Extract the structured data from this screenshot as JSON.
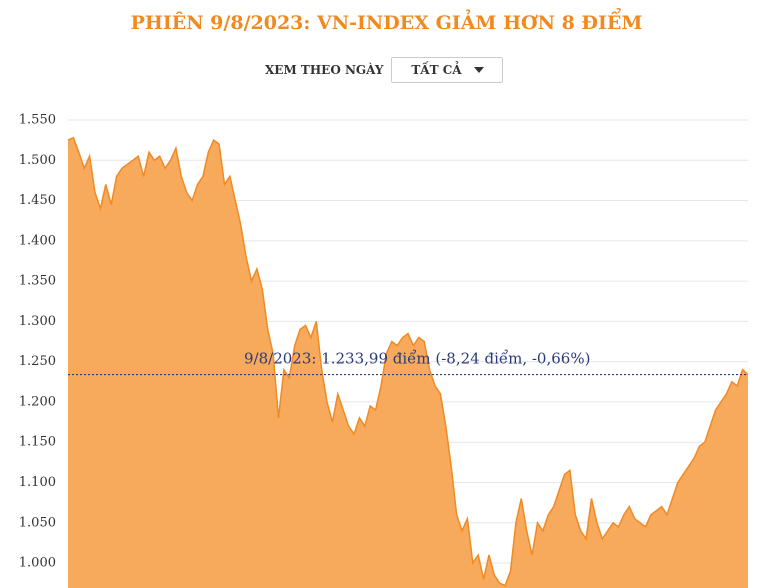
{
  "title": "PHIÊN 9/8/2023: VN-INDEX GIẢM HƠN 8 ĐIỂM",
  "controls": {
    "label": "XEM THEO NGÀY",
    "dropdown": "TẤT CẢ"
  },
  "chart_data": {
    "type": "area",
    "color": "#f7a95c",
    "line_color": "#f08a24",
    "grid": true,
    "ylim": [
      969,
      1550
    ],
    "yticks": [
      {
        "value": 1000,
        "label": "1.000"
      },
      {
        "value": 1050,
        "label": "1.050"
      },
      {
        "value": 1100,
        "label": "1.100"
      },
      {
        "value": 1150,
        "label": "1.150"
      },
      {
        "value": 1200,
        "label": "1.200"
      },
      {
        "value": 1250,
        "label": "1.250"
      },
      {
        "value": 1300,
        "label": "1.300"
      },
      {
        "value": 1350,
        "label": "1.350"
      },
      {
        "value": 1400,
        "label": "1.400"
      },
      {
        "value": 1450,
        "label": "1.450"
      },
      {
        "value": 1500,
        "label": "1.500"
      },
      {
        "value": 1550,
        "label": "1.550"
      }
    ],
    "values": [
      1525,
      1528,
      1510,
      1490,
      1505,
      1460,
      1440,
      1470,
      1445,
      1480,
      1490,
      1495,
      1500,
      1505,
      1480,
      1510,
      1500,
      1505,
      1490,
      1500,
      1515,
      1480,
      1460,
      1450,
      1470,
      1480,
      1510,
      1525,
      1520,
      1470,
      1480,
      1450,
      1420,
      1380,
      1350,
      1365,
      1340,
      1290,
      1260,
      1180,
      1240,
      1230,
      1270,
      1290,
      1295,
      1280,
      1300,
      1240,
      1200,
      1175,
      1210,
      1190,
      1170,
      1160,
      1180,
      1170,
      1195,
      1190,
      1220,
      1260,
      1275,
      1270,
      1280,
      1285,
      1270,
      1280,
      1275,
      1240,
      1220,
      1210,
      1170,
      1120,
      1060,
      1040,
      1055,
      1000,
      1010,
      980,
      1010,
      985,
      975,
      972,
      990,
      1050,
      1080,
      1040,
      1010,
      1050,
      1040,
      1060,
      1070,
      1090,
      1110,
      1115,
      1060,
      1040,
      1030,
      1080,
      1050,
      1030,
      1040,
      1050,
      1045,
      1060,
      1070,
      1055,
      1050,
      1045,
      1060,
      1065,
      1070,
      1060,
      1080,
      1100,
      1110,
      1120,
      1130,
      1145,
      1150,
      1170,
      1190,
      1200,
      1210,
      1225,
      1220,
      1240,
      1233.99
    ],
    "reference_line": {
      "value": 1233.99,
      "label": "9/8/2023: 1.233,99 điểm (-8,24 điểm, -0,66%)",
      "color": "#2b3a7a"
    }
  }
}
